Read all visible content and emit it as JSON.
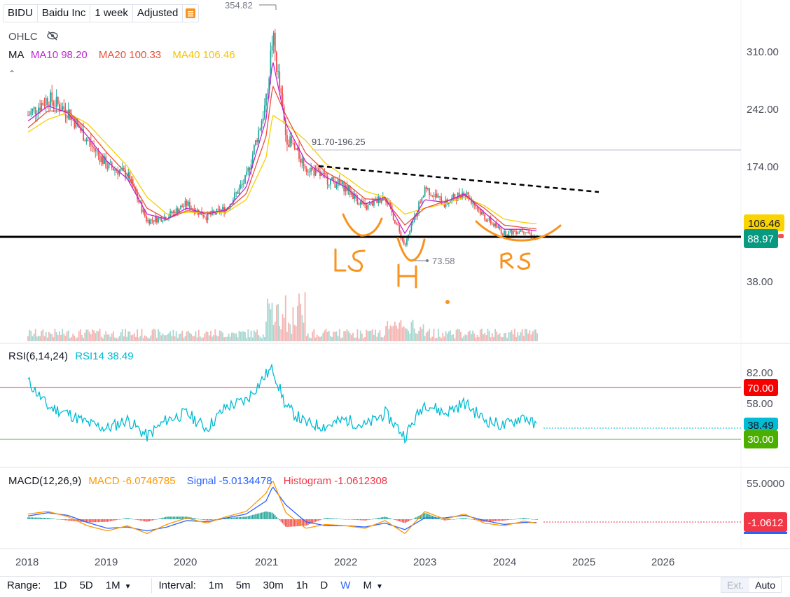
{
  "header": {
    "ticker": "BIDU",
    "company": "Baidu Inc",
    "interval": "1 week",
    "adjustment": "Adjusted"
  },
  "main_legend": {
    "ohlc_label": "OHLC",
    "ma_label": "MA",
    "ma10": "MA10 98.20",
    "ma20": "MA20 100.33",
    "ma40": "MA40 106.46"
  },
  "annotations": {
    "high_label": "354.82",
    "low_label": "73.58",
    "range_label": "91.70-196.25",
    "pattern_labels": [
      "LS",
      "H",
      "RS"
    ]
  },
  "price_badges": {
    "ma40": "106.46",
    "last": "88.97"
  },
  "rsi_legend": {
    "name": "RSI(6,14,24)",
    "rsi14": "RSI14 38.49"
  },
  "rsi_badges": {
    "upper": "70.00",
    "current": "38.49",
    "lower": "30.00"
  },
  "macd_legend": {
    "name": "MACD(12,26,9)",
    "macd": "MACD -6.0746785",
    "signal": "Signal -5.0134478",
    "histogram": "Histogram -1.0612308"
  },
  "macd_badge": "-1.0612",
  "bottom": {
    "range_label": "Range:",
    "ranges": [
      "1D",
      "5D",
      "1M"
    ],
    "interval_label": "Interval:",
    "intervals": [
      "1m",
      "5m",
      "30m",
      "1h",
      "D",
      "W",
      "M"
    ],
    "selected_interval": "W",
    "ext": "Ext.",
    "auto": "Auto"
  },
  "colors": {
    "up": "#26a69a",
    "down": "#ef5350",
    "ma10": "#c026d3",
    "ma20": "#e8503a",
    "ma40": "#f5d000",
    "rsi": "#00bcd4",
    "macd": "#ff9800",
    "signal": "#2962ff",
    "drawing": "#f7931e"
  },
  "chart_data": [
    {
      "type": "line",
      "title": "BIDU weekly price with MA10, MA20, MA40",
      "x": [
        "2018-01",
        "2018-04",
        "2018-07",
        "2018-10",
        "2019-01",
        "2019-04",
        "2019-07",
        "2019-10",
        "2020-01",
        "2020-04",
        "2020-07",
        "2020-10",
        "2021-01",
        "2021-02",
        "2021-04",
        "2021-07",
        "2021-10",
        "2022-01",
        "2022-04",
        "2022-07",
        "2022-10",
        "2023-01",
        "2023-04",
        "2023-07",
        "2023-10",
        "2024-01",
        "2024-04",
        "2024-06"
      ],
      "series": [
        {
          "name": "Close",
          "values": [
            235,
            255,
            240,
            205,
            175,
            165,
            110,
            115,
            130,
            115,
            125,
            160,
            250,
            330,
            210,
            175,
            160,
            150,
            125,
            140,
            80,
            150,
            130,
            145,
            115,
            95,
            100,
            89
          ]
        },
        {
          "name": "MA10",
          "values": [
            228,
            246,
            238,
            210,
            180,
            160,
            118,
            112,
            125,
            118,
            123,
            150,
            230,
            300,
            225,
            180,
            162,
            150,
            130,
            138,
            95,
            135,
            132,
            142,
            120,
            100,
            100,
            98.2
          ]
        },
        {
          "name": "MA20",
          "values": [
            220,
            240,
            240,
            218,
            190,
            165,
            125,
            112,
            122,
            120,
            122,
            142,
            210,
            270,
            235,
            190,
            168,
            155,
            136,
            135,
            105,
            125,
            133,
            140,
            125,
            105,
            102,
            100.33
          ]
        },
        {
          "name": "MA40",
          "values": [
            215,
            230,
            238,
            225,
            200,
            175,
            138,
            118,
            120,
            120,
            120,
            135,
            185,
            235,
            225,
            205,
            178,
            162,
            145,
            138,
            118,
            125,
            130,
            138,
            128,
            112,
            108,
            106.46
          ]
        }
      ],
      "ylim": [
        38,
        354.82
      ],
      "y_ticks": [
        "310.00",
        "242.00",
        "174.00",
        "38.00"
      ],
      "x_ticks": [
        "2018",
        "2019",
        "2020",
        "2021",
        "2022",
        "2023",
        "2024",
        "2025",
        "2026"
      ],
      "extremes": {
        "high": 354.82,
        "low": 73.58
      },
      "horizontal_levels": [
        88.97,
        196.25
      ],
      "trendline": {
        "from": [
          "2021-09",
          174
        ],
        "to": [
          "2025-02",
          150
        ]
      }
    },
    {
      "type": "line",
      "title": "RSI14",
      "x": [
        "2018-01",
        "2018-04",
        "2018-07",
        "2018-10",
        "2019-01",
        "2019-04",
        "2019-07",
        "2019-10",
        "2020-01",
        "2020-04",
        "2020-07",
        "2020-10",
        "2021-01",
        "2021-02",
        "2021-04",
        "2021-07",
        "2021-10",
        "2022-01",
        "2022-04",
        "2022-07",
        "2022-10",
        "2023-01",
        "2023-04",
        "2023-07",
        "2023-10",
        "2024-01",
        "2024-04",
        "2024-06"
      ],
      "series": [
        {
          "name": "RSI14",
          "values": [
            75,
            55,
            50,
            42,
            38,
            45,
            32,
            45,
            50,
            38,
            55,
            60,
            80,
            85,
            55,
            42,
            40,
            45,
            40,
            50,
            32,
            58,
            50,
            58,
            45,
            40,
            48,
            38.49
          ]
        }
      ],
      "ylim": [
        20,
        90
      ],
      "y_ticks": [
        "82.00",
        "58.00"
      ],
      "levels": [
        70,
        30
      ]
    },
    {
      "type": "line",
      "title": "MACD(12,26,9)",
      "x": [
        "2018-01",
        "2018-04",
        "2018-07",
        "2018-10",
        "2019-01",
        "2019-04",
        "2019-07",
        "2019-10",
        "2020-01",
        "2020-04",
        "2020-07",
        "2020-10",
        "2021-01",
        "2021-02",
        "2021-04",
        "2021-07",
        "2021-10",
        "2022-01",
        "2022-04",
        "2022-07",
        "2022-10",
        "2023-01",
        "2023-04",
        "2023-07",
        "2023-10",
        "2024-01",
        "2024-04",
        "2024-06"
      ],
      "series": [
        {
          "name": "MACD",
          "values": [
            8,
            12,
            4,
            -10,
            -18,
            -10,
            -22,
            -8,
            2,
            -6,
            4,
            12,
            40,
            60,
            10,
            -14,
            -8,
            -10,
            -14,
            -2,
            -22,
            12,
            0,
            8,
            -6,
            -10,
            -3,
            -6.07
          ]
        },
        {
          "name": "Signal",
          "values": [
            5,
            10,
            6,
            -5,
            -14,
            -12,
            -18,
            -12,
            -2,
            -4,
            2,
            8,
            28,
            50,
            22,
            -4,
            -10,
            -10,
            -12,
            -6,
            -16,
            2,
            2,
            6,
            -2,
            -8,
            -5,
            -5.01
          ]
        }
      ],
      "ylim": [
        -40,
        75
      ],
      "y_ticks": [
        "55.0000"
      ]
    }
  ]
}
